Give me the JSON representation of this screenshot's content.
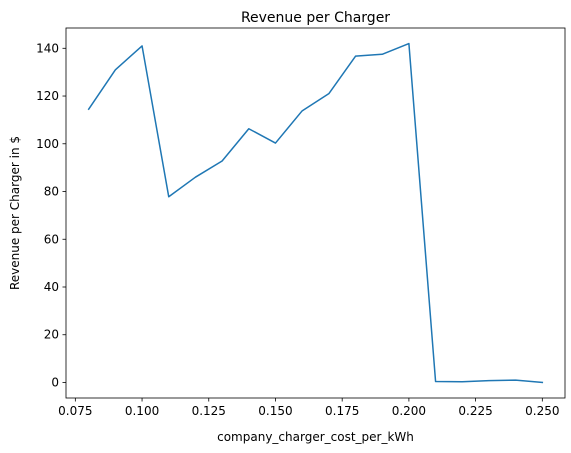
{
  "chart_data": {
    "type": "line",
    "title": "Revenue per Charger",
    "xlabel": "company_charger_cost_per_kWh",
    "ylabel": "Revenue per Charger in $",
    "xlim": [
      0.0715,
      0.2585
    ],
    "ylim": [
      -6.5,
      148.5
    ],
    "grid": false,
    "x_ticks": [
      0.075,
      0.1,
      0.125,
      0.15,
      0.175,
      0.2,
      0.225,
      0.25
    ],
    "x_tick_labels": [
      "0.075",
      "0.100",
      "0.125",
      "0.150",
      "0.175",
      "0.200",
      "0.225",
      "0.250"
    ],
    "y_ticks": [
      0,
      20,
      40,
      60,
      80,
      100,
      120,
      140
    ],
    "y_tick_labels": [
      "0",
      "20",
      "40",
      "60",
      "80",
      "100",
      "120",
      "140"
    ],
    "series": [
      {
        "color": "#1f77b4",
        "x": [
          0.08,
          0.09,
          0.1,
          0.11,
          0.12,
          0.13,
          0.14,
          0.15,
          0.16,
          0.17,
          0.18,
          0.19,
          0.2,
          0.21,
          0.22,
          0.23,
          0.24,
          0.25
        ],
        "y": [
          114.5,
          131.0,
          141.0,
          77.8,
          86.0,
          92.8,
          106.3,
          100.3,
          113.8,
          121.0,
          136.7,
          137.5,
          142.0,
          0.4,
          0.3,
          0.8,
          1.0,
          0.0
        ]
      }
    ]
  }
}
